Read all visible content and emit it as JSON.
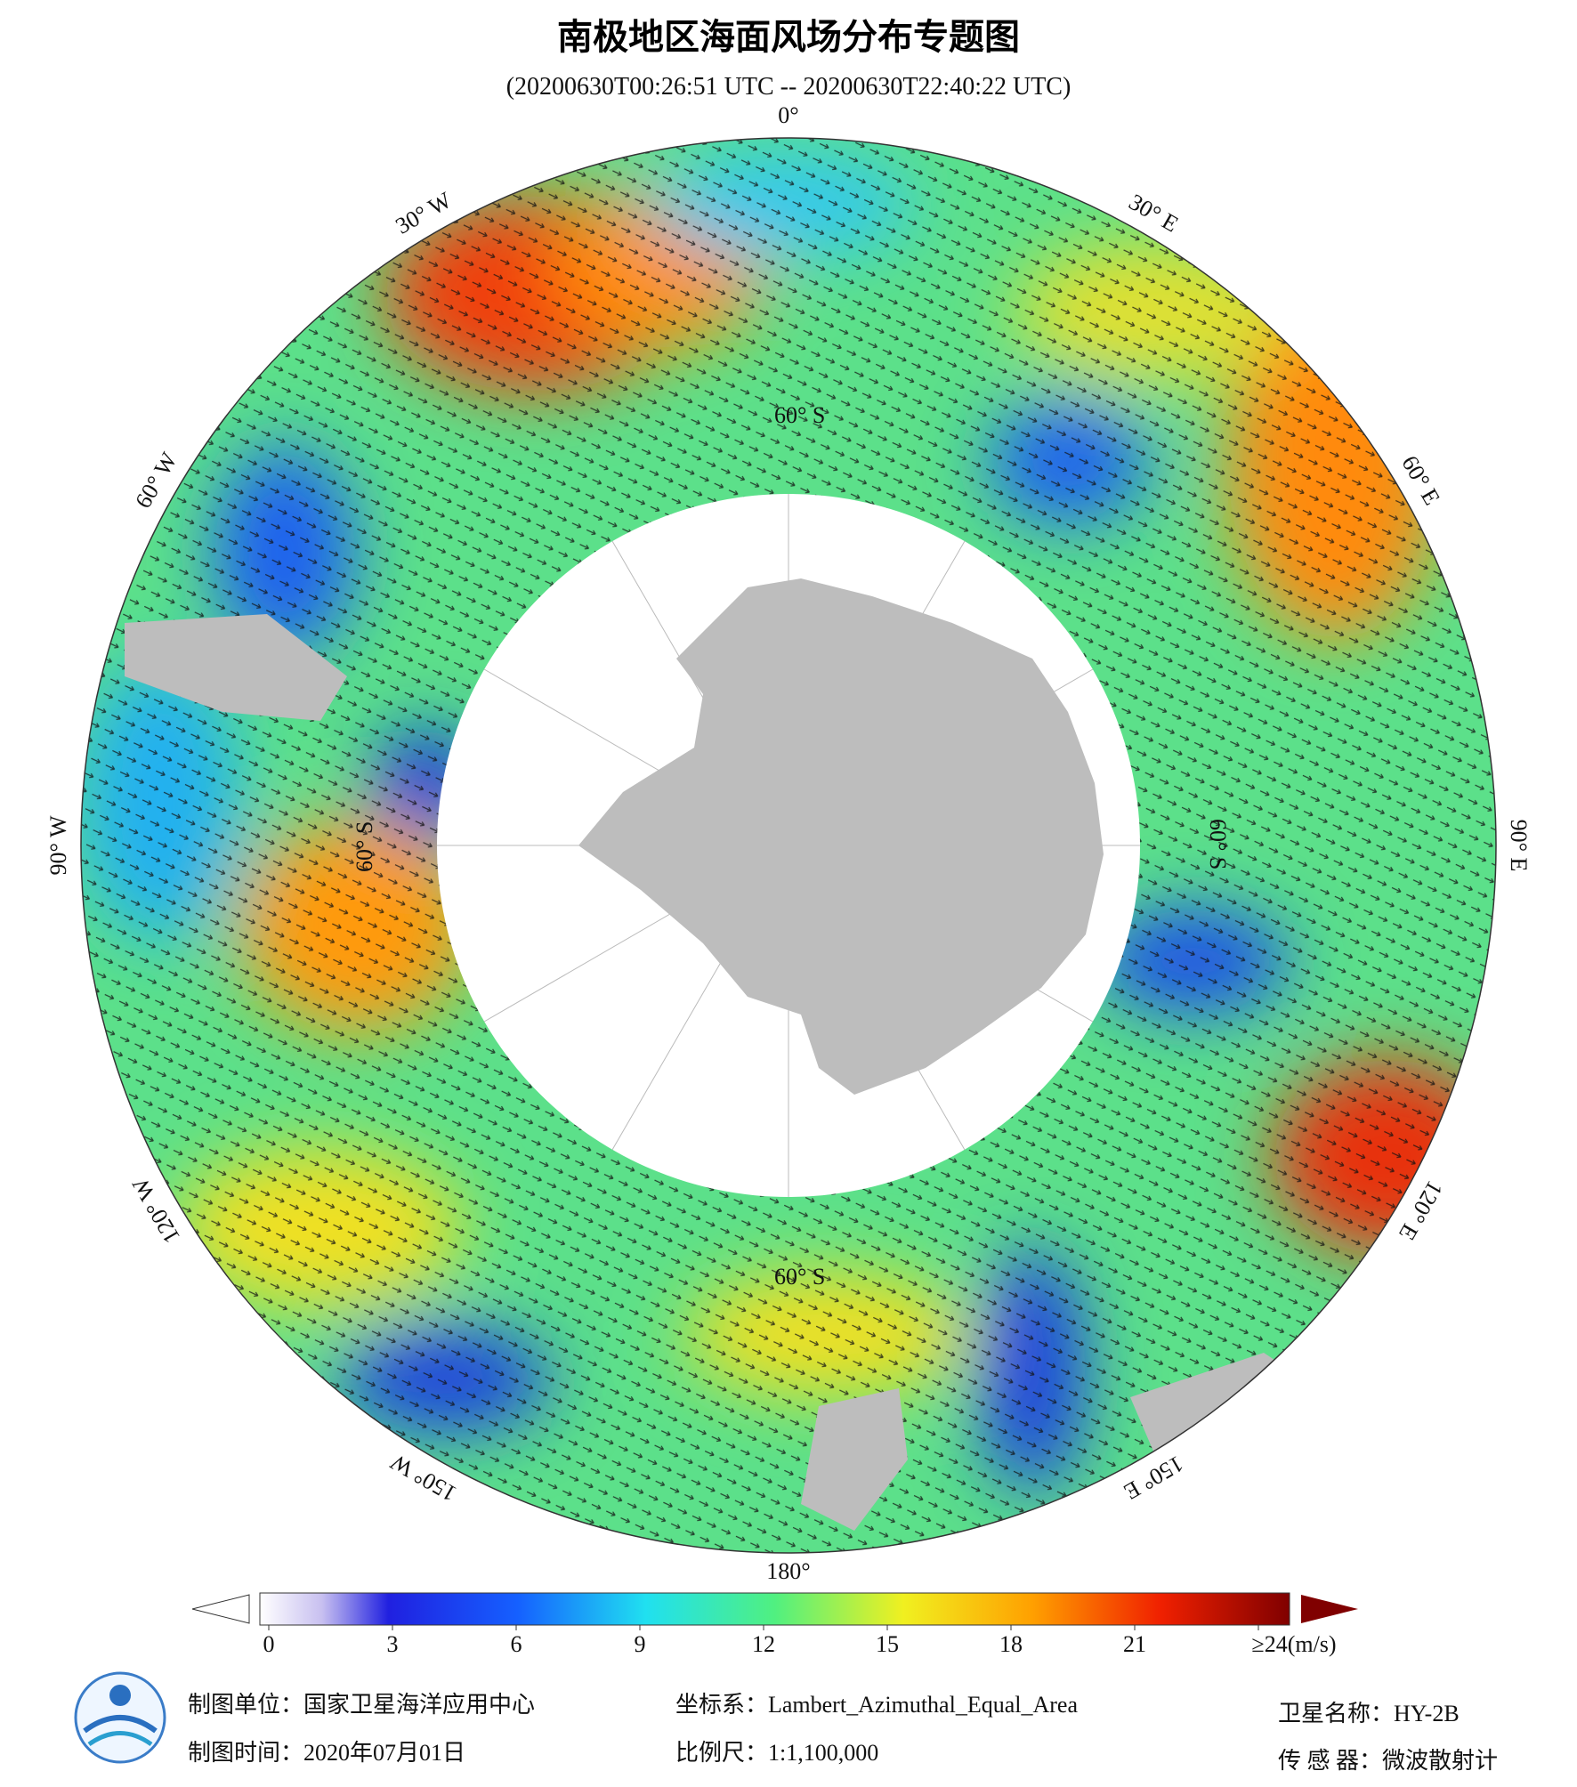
{
  "header": {
    "title": "南极地区海面风场分布专题图",
    "subtitle": "(20200630T00:26:51 UTC -- 20200630T22:40:22 UTC)"
  },
  "map": {
    "lon_labels": [
      "0°",
      "30° E",
      "60° E",
      "90° E",
      "120° E",
      "150° E",
      "180°",
      "150° W",
      "120° W",
      "90° W",
      "60° W",
      "30° W"
    ],
    "lat_labels": [
      "60° S",
      "60° S",
      "60° S",
      "60° S"
    ]
  },
  "colorbar": {
    "range": [
      0,
      24
    ],
    "ticks": [
      0,
      3,
      6,
      9,
      12,
      15,
      18,
      21,
      {
        "value": 24,
        "label": "≥24(m/s)"
      }
    ]
  },
  "footer": {
    "unit": "制图单位：国家卫星海洋应用中心",
    "date": "制图时间：2020年07月01日",
    "crs": "坐标系：Lambert_Azimuthal_Equal_Area",
    "scale": "比例尺：1:1,100,000",
    "satellite": "卫星名称：HY-2B",
    "sensor": "传 感 器：微波散射计"
  }
}
